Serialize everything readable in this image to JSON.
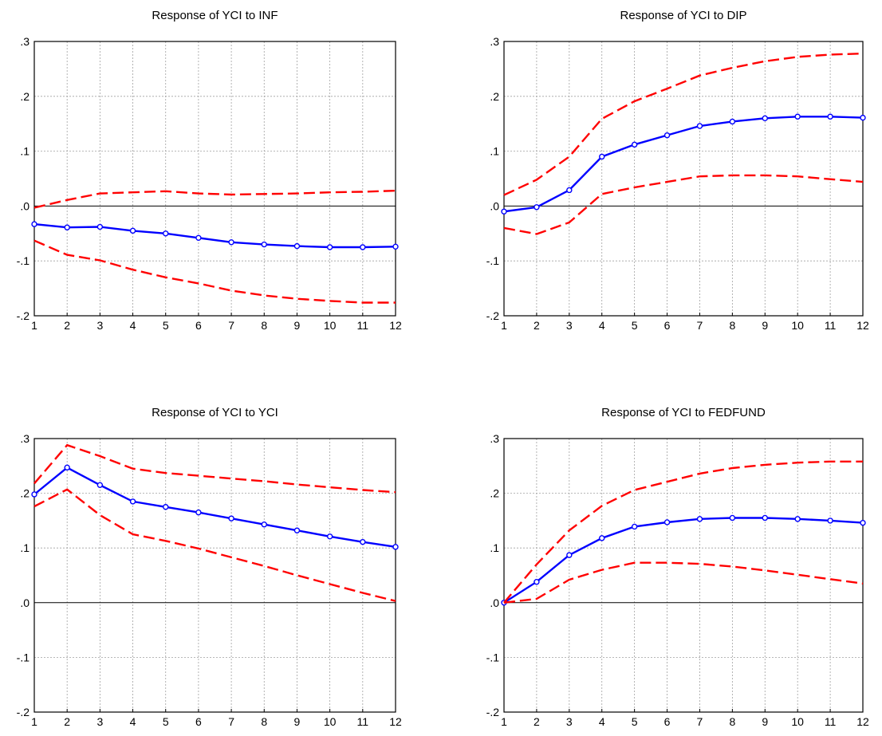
{
  "chart_data": [
    {
      "type": "line",
      "title": "Response of YCI to INF",
      "x": [
        1,
        2,
        3,
        4,
        5,
        6,
        7,
        8,
        9,
        10,
        11,
        12
      ],
      "ylim": [
        -0.2,
        0.3
      ],
      "y_ticks": [
        ".3",
        ".2",
        ".1",
        ".0",
        "-.1",
        "-.2"
      ],
      "x_ticks": [
        "1",
        "2",
        "3",
        "4",
        "5",
        "6",
        "7",
        "8",
        "9",
        "10",
        "11",
        "12"
      ],
      "grid": true,
      "series": [
        {
          "role": "response",
          "color": "#0000ff",
          "style": "solid-markers",
          "values": [
            -0.033,
            -0.039,
            -0.038,
            -0.045,
            -0.05,
            -0.058,
            -0.066,
            -0.07,
            -0.073,
            -0.075,
            -0.075,
            -0.074
          ]
        },
        {
          "role": "upper",
          "color": "#ff0000",
          "style": "dashed",
          "values": [
            -0.003,
            0.011,
            0.023,
            0.025,
            0.027,
            0.023,
            0.021,
            0.022,
            0.023,
            0.025,
            0.026,
            0.028
          ]
        },
        {
          "role": "lower",
          "color": "#ff0000",
          "style": "dashed",
          "values": [
            -0.063,
            -0.089,
            -0.099,
            -0.116,
            -0.13,
            -0.141,
            -0.154,
            -0.163,
            -0.169,
            -0.173,
            -0.176,
            -0.176
          ]
        }
      ]
    },
    {
      "type": "line",
      "title": "Response of YCI to DIP",
      "x": [
        1,
        2,
        3,
        4,
        5,
        6,
        7,
        8,
        9,
        10,
        11,
        12
      ],
      "ylim": [
        -0.2,
        0.3
      ],
      "y_ticks": [
        ".3",
        ".2",
        ".1",
        ".0",
        "-.1",
        "-.2"
      ],
      "x_ticks": [
        "1",
        "2",
        "3",
        "4",
        "5",
        "6",
        "7",
        "8",
        "9",
        "10",
        "11",
        "12"
      ],
      "grid": true,
      "series": [
        {
          "role": "response",
          "color": "#0000ff",
          "style": "solid-markers",
          "values": [
            -0.01,
            -0.002,
            0.029,
            0.09,
            0.112,
            0.129,
            0.146,
            0.154,
            0.16,
            0.163,
            0.163,
            0.161
          ]
        },
        {
          "role": "upper",
          "color": "#ff0000",
          "style": "dashed",
          "values": [
            0.02,
            0.048,
            0.09,
            0.159,
            0.191,
            0.214,
            0.238,
            0.252,
            0.264,
            0.272,
            0.276,
            0.278
          ]
        },
        {
          "role": "lower",
          "color": "#ff0000",
          "style": "dashed",
          "values": [
            -0.04,
            -0.051,
            -0.03,
            0.022,
            0.034,
            0.044,
            0.054,
            0.056,
            0.056,
            0.054,
            0.049,
            0.044
          ]
        }
      ]
    },
    {
      "type": "line",
      "title": "Response of YCI to YCI",
      "x": [
        1,
        2,
        3,
        4,
        5,
        6,
        7,
        8,
        9,
        10,
        11,
        12
      ],
      "ylim": [
        -0.2,
        0.3
      ],
      "y_ticks": [
        ".3",
        ".2",
        ".1",
        ".0",
        "-.1",
        "-.2"
      ],
      "x_ticks": [
        "1",
        "2",
        "3",
        "4",
        "5",
        "6",
        "7",
        "8",
        "9",
        "10",
        "11",
        "12"
      ],
      "grid": true,
      "series": [
        {
          "role": "response",
          "color": "#0000ff",
          "style": "solid-markers",
          "values": [
            0.198,
            0.247,
            0.215,
            0.185,
            0.175,
            0.165,
            0.154,
            0.143,
            0.132,
            0.121,
            0.111,
            0.102
          ]
        },
        {
          "role": "upper",
          "color": "#ff0000",
          "style": "dashed",
          "values": [
            0.218,
            0.288,
            0.268,
            0.245,
            0.237,
            0.232,
            0.227,
            0.222,
            0.216,
            0.211,
            0.206,
            0.202
          ]
        },
        {
          "role": "lower",
          "color": "#ff0000",
          "style": "dashed",
          "values": [
            0.176,
            0.207,
            0.16,
            0.125,
            0.113,
            0.099,
            0.083,
            0.067,
            0.05,
            0.034,
            0.018,
            0.003
          ]
        }
      ]
    },
    {
      "type": "line",
      "title": "Response of YCI to FEDFUND",
      "x": [
        1,
        2,
        3,
        4,
        5,
        6,
        7,
        8,
        9,
        10,
        11,
        12
      ],
      "ylim": [
        -0.2,
        0.3
      ],
      "y_ticks": [
        ".3",
        ".2",
        ".1",
        ".0",
        "-.1",
        "-.2"
      ],
      "x_ticks": [
        "1",
        "2",
        "3",
        "4",
        "5",
        "6",
        "7",
        "8",
        "9",
        "10",
        "11",
        "12"
      ],
      "grid": true,
      "series": [
        {
          "role": "response",
          "color": "#0000ff",
          "style": "solid-markers",
          "values": [
            0.0,
            0.038,
            0.087,
            0.118,
            0.139,
            0.147,
            0.153,
            0.155,
            0.155,
            0.153,
            0.15,
            0.146
          ]
        },
        {
          "role": "upper",
          "color": "#ff0000",
          "style": "dashed",
          "values": [
            0.0,
            0.07,
            0.132,
            0.177,
            0.206,
            0.221,
            0.236,
            0.246,
            0.252,
            0.256,
            0.258,
            0.258
          ]
        },
        {
          "role": "lower",
          "color": "#ff0000",
          "style": "dashed",
          "values": [
            0.0,
            0.007,
            0.042,
            0.06,
            0.073,
            0.073,
            0.071,
            0.066,
            0.059,
            0.051,
            0.043,
            0.035
          ]
        }
      ]
    }
  ],
  "colors": {
    "response": "#0000ff",
    "band": "#ff0000",
    "grid": "#a0a0a0",
    "zero_line": "#000000"
  }
}
